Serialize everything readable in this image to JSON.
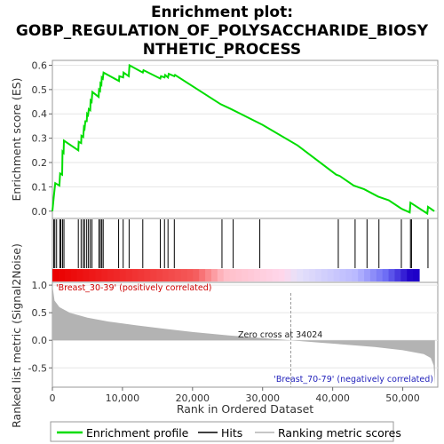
{
  "title_lines": [
    "Enrichment plot:",
    "GOBP_REGULATION_OF_POLYSACCHARIDE_BIOSY",
    "NTHETIC_PROCESS"
  ],
  "colors": {
    "es_line": "#00dd00",
    "hit": "#000000",
    "metric_fill": "#b3b3b3",
    "pos_text": "#cc0000",
    "neg_text": "#2222bb",
    "grid": "#e6e6e6"
  },
  "legend": [
    {
      "label": "Enrichment profile",
      "kind": "line"
    },
    {
      "label": "Hits",
      "kind": "hit"
    },
    {
      "label": "Ranking metric scores",
      "kind": "metric"
    }
  ],
  "chart_data": [
    {
      "type": "line",
      "name": "enrichment_profile",
      "ylabel": "Enrichment score (ES)",
      "xlim": [
        0,
        55000
      ],
      "ylim": [
        -0.03,
        0.62
      ],
      "yticks": [
        "0.0",
        "0.1",
        "0.2",
        "0.3",
        "0.4",
        "0.5",
        "0.6"
      ],
      "grid": true,
      "points": [
        [
          0,
          0.0
        ],
        [
          200,
          0.06
        ],
        [
          400,
          0.115
        ],
        [
          1000,
          0.105
        ],
        [
          1100,
          0.155
        ],
        [
          1400,
          0.15
        ],
        [
          1450,
          0.245
        ],
        [
          1600,
          0.24
        ],
        [
          1650,
          0.29
        ],
        [
          3700,
          0.25
        ],
        [
          3750,
          0.285
        ],
        [
          4100,
          0.28
        ],
        [
          4150,
          0.31
        ],
        [
          4400,
          0.305
        ],
        [
          4500,
          0.345
        ],
        [
          4600,
          0.34
        ],
        [
          4700,
          0.37
        ],
        [
          4900,
          0.37
        ],
        [
          4950,
          0.4
        ],
        [
          5100,
          0.395
        ],
        [
          5200,
          0.42
        ],
        [
          5400,
          0.415
        ],
        [
          5450,
          0.455
        ],
        [
          5600,
          0.45
        ],
        [
          5700,
          0.49
        ],
        [
          6600,
          0.47
        ],
        [
          6650,
          0.5
        ],
        [
          6800,
          0.495
        ],
        [
          6850,
          0.525
        ],
        [
          7000,
          0.52
        ],
        [
          7050,
          0.55
        ],
        [
          7200,
          0.545
        ],
        [
          7300,
          0.57
        ],
        [
          9500,
          0.535
        ],
        [
          9550,
          0.555
        ],
        [
          10100,
          0.55
        ],
        [
          10150,
          0.57
        ],
        [
          10900,
          0.555
        ],
        [
          11000,
          0.6
        ],
        [
          12900,
          0.57
        ],
        [
          13000,
          0.58
        ],
        [
          15400,
          0.545
        ],
        [
          15500,
          0.555
        ],
        [
          16000,
          0.55
        ],
        [
          16100,
          0.56
        ],
        [
          16500,
          0.55
        ],
        [
          16600,
          0.565
        ],
        [
          17400,
          0.555
        ],
        [
          17500,
          0.56
        ],
        [
          24000,
          0.44
        ],
        [
          25500,
          0.42
        ],
        [
          30000,
          0.355
        ],
        [
          35000,
          0.27
        ],
        [
          40500,
          0.15
        ],
        [
          41000,
          0.145
        ],
        [
          43000,
          0.105
        ],
        [
          44500,
          0.09
        ],
        [
          46500,
          0.06
        ],
        [
          48000,
          0.045
        ],
        [
          49800,
          0.01
        ],
        [
          51000,
          -0.005
        ],
        [
          51100,
          0.035
        ],
        [
          53500,
          -0.01
        ],
        [
          53600,
          0.018
        ],
        [
          54500,
          0.0
        ]
      ],
      "hits": [
        200,
        350,
        600,
        1050,
        1200,
        1450,
        1650,
        3700,
        4100,
        4400,
        4600,
        4900,
        5150,
        5400,
        5650,
        6650,
        6850,
        7050,
        7250,
        9450,
        10100,
        10950,
        12900,
        15400,
        16000,
        16500,
        17400,
        24200,
        25800,
        29600,
        40800,
        43200,
        44900,
        46600,
        49800,
        51100,
        51250,
        53600
      ]
    },
    {
      "type": "area",
      "name": "ranked_list_metric",
      "xlabel": "Rank in Ordered Dataset",
      "ylabel": "Ranked list metric (Signal2Noise)",
      "xlim": [
        0,
        55000
      ],
      "ylim": [
        -0.85,
        1.05
      ],
      "xticks": [
        "0",
        "10,000",
        "20,000",
        "30,000",
        "40,000",
        "50,000"
      ],
      "yticks": [
        "1.0",
        "0.5",
        "0.0",
        "-0.5"
      ],
      "points": [
        [
          0,
          1.0
        ],
        [
          300,
          0.72
        ],
        [
          1000,
          0.6
        ],
        [
          2500,
          0.5
        ],
        [
          5000,
          0.41
        ],
        [
          8000,
          0.34
        ],
        [
          12000,
          0.27
        ],
        [
          16000,
          0.21
        ],
        [
          20000,
          0.15
        ],
        [
          25000,
          0.09
        ],
        [
          30000,
          0.04
        ],
        [
          34024,
          0.0
        ],
        [
          38000,
          -0.04
        ],
        [
          42000,
          -0.08
        ],
        [
          46000,
          -0.12
        ],
        [
          50000,
          -0.18
        ],
        [
          53000,
          -0.25
        ],
        [
          54000,
          -0.32
        ],
        [
          54400,
          -0.45
        ],
        [
          54600,
          -0.8
        ]
      ],
      "annotations": {
        "positive": "'Breast_30-39' (positively correlated)",
        "negative": "'Breast_70-79' (negatively correlated)",
        "zero_cross": "Zero cross at 34024"
      },
      "zero_cross": 34024
    }
  ]
}
